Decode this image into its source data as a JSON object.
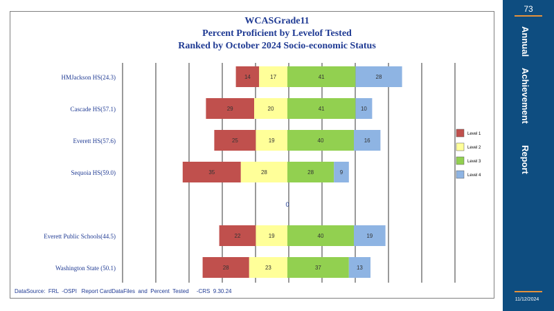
{
  "chart_data": {
    "type": "bar",
    "stacked": "diverging",
    "title": "WCASGrade11",
    "subtitle_lines": [
      "Percent Proficient by Levelof Tested",
      "Ranked by October 2024 Socio-economic  Status"
    ],
    "categories": [
      "HMJackson HS(24.3)",
      "Cascade HS(57.1)",
      "Everett HS(57.6)",
      "Sequoia HS(59.0)",
      "",
      "Everett Public Schools(44.5)",
      "Washington State (50.1)"
    ],
    "series": [
      {
        "name": "Level 1",
        "color": "#c0504d",
        "values": [
          14,
          29,
          25,
          35,
          null,
          22,
          28
        ]
      },
      {
        "name": "Level 2",
        "color": "#ffff99",
        "values": [
          17,
          20,
          19,
          28,
          null,
          19,
          23
        ]
      },
      {
        "name": "Level 3",
        "color": "#92d050",
        "values": [
          41,
          41,
          40,
          28,
          null,
          40,
          37
        ]
      },
      {
        "name": "Level 4",
        "color": "#8eb4e3",
        "values": [
          28,
          10,
          16,
          9,
          null,
          19,
          13
        ]
      }
    ],
    "zero_label": "0",
    "xlim": [
      -100,
      100
    ],
    "grid": true,
    "legend": "right"
  },
  "source_text": "DataSource:  FRL  -OSPI   Report CardDataFiles  and  Percent  Tested     -CRS  9.30.24",
  "sidebar": {
    "page_number": "73",
    "words": [
      "Annual",
      "Achievement",
      "Report"
    ],
    "date": "11/12/2024",
    "bg_color": "#0e4d80",
    "accent_color": "#e8923a"
  }
}
